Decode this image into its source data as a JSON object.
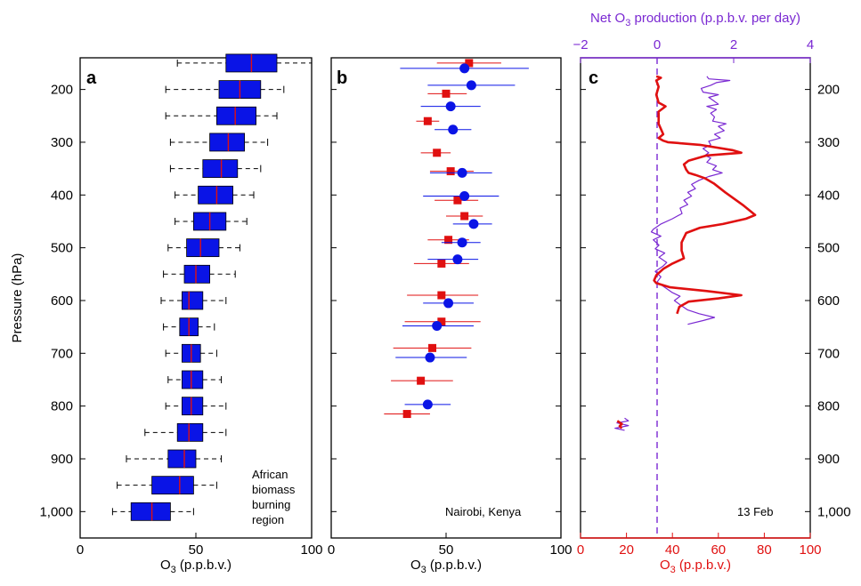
{
  "chart_data": [
    {
      "panel": "a",
      "type": "box",
      "xlabel": "O",
      "xlabel_sub": "3",
      "xlabel_tail": " (p.p.b.v.)",
      "ylabel": "Pressure (hPa)",
      "xlim": [
        0,
        100
      ],
      "ylim": [
        1050,
        140
      ],
      "xticks": [
        "0",
        "50",
        "100"
      ],
      "yticks": [
        "200",
        "300",
        "400",
        "500",
        "600",
        "700",
        "800",
        "900",
        "1,000"
      ],
      "annotation": [
        "African",
        "biomass",
        "burning",
        "region"
      ],
      "box_color": "#0a14e6",
      "median_color": "#e01010",
      "boxes": [
        {
          "p": 150,
          "wlo": 42,
          "q1": 63,
          "med": 74,
          "q3": 85,
          "whi": 100
        },
        {
          "p": 200,
          "wlo": 37,
          "q1": 60,
          "med": 69,
          "q3": 78,
          "whi": 88
        },
        {
          "p": 250,
          "wlo": 37,
          "q1": 59,
          "med": 67,
          "q3": 76,
          "whi": 85
        },
        {
          "p": 300,
          "wlo": 39,
          "q1": 56,
          "med": 64,
          "q3": 71,
          "whi": 81
        },
        {
          "p": 350,
          "wlo": 39,
          "q1": 53,
          "med": 61,
          "q3": 68,
          "whi": 78
        },
        {
          "p": 400,
          "wlo": 41,
          "q1": 51,
          "med": 59,
          "q3": 66,
          "whi": 75
        },
        {
          "p": 450,
          "wlo": 41,
          "q1": 49,
          "med": 56,
          "q3": 63,
          "whi": 72
        },
        {
          "p": 500,
          "wlo": 38,
          "q1": 46,
          "med": 52,
          "q3": 60,
          "whi": 69
        },
        {
          "p": 550,
          "wlo": 36,
          "q1": 45,
          "med": 50,
          "q3": 56,
          "whi": 67
        },
        {
          "p": 600,
          "wlo": 35,
          "q1": 44,
          "med": 47,
          "q3": 53,
          "whi": 63
        },
        {
          "p": 650,
          "wlo": 36,
          "q1": 43,
          "med": 47,
          "q3": 51,
          "whi": 58
        },
        {
          "p": 700,
          "wlo": 37,
          "q1": 44,
          "med": 48,
          "q3": 52,
          "whi": 59
        },
        {
          "p": 750,
          "wlo": 38,
          "q1": 44,
          "med": 48,
          "q3": 53,
          "whi": 61
        },
        {
          "p": 800,
          "wlo": 37,
          "q1": 44,
          "med": 48,
          "q3": 53,
          "whi": 63
        },
        {
          "p": 850,
          "wlo": 28,
          "q1": 42,
          "med": 47,
          "q3": 53,
          "whi": 63
        },
        {
          "p": 900,
          "wlo": 20,
          "q1": 38,
          "med": 45,
          "q3": 50,
          "whi": 61
        },
        {
          "p": 950,
          "wlo": 16,
          "q1": 31,
          "med": 43,
          "q3": 49,
          "whi": 59
        },
        {
          "p": 1000,
          "wlo": 14,
          "q1": 22,
          "med": 31,
          "q3": 39,
          "whi": 49
        }
      ]
    },
    {
      "panel": "b",
      "type": "scatter",
      "xlabel": "O",
      "xlabel_sub": "3",
      "xlabel_tail": " (p.p.b.v.)",
      "xlim": [
        0,
        100
      ],
      "ylim": [
        1050,
        140
      ],
      "xticks": [
        "0",
        "50",
        "100"
      ],
      "annotation": "Nairobi, Kenya",
      "series": [
        {
          "color": "#e01010",
          "marker": "square",
          "points": [
            {
              "x": 60,
              "p": 150,
              "lo": 46,
              "hi": 74
            },
            {
              "x": 50,
              "p": 208,
              "lo": 42,
              "hi": 59
            },
            {
              "x": 42,
              "p": 260,
              "lo": 37,
              "hi": 47
            },
            {
              "x": 46,
              "p": 320,
              "lo": 39,
              "hi": 52
            },
            {
              "x": 52,
              "p": 355,
              "lo": 43,
              "hi": 62
            },
            {
              "x": 55,
              "p": 410,
              "lo": 45,
              "hi": 64
            },
            {
              "x": 58,
              "p": 440,
              "lo": 50,
              "hi": 66
            },
            {
              "x": 51,
              "p": 485,
              "lo": 42,
              "hi": 60
            },
            {
              "x": 48,
              "p": 530,
              "lo": 36,
              "hi": 60
            },
            {
              "x": 48,
              "p": 590,
              "lo": 33,
              "hi": 64
            },
            {
              "x": 48,
              "p": 640,
              "lo": 32,
              "hi": 65
            },
            {
              "x": 44,
              "p": 690,
              "lo": 27,
              "hi": 61
            },
            {
              "x": 39,
              "p": 752,
              "lo": 26,
              "hi": 53
            },
            {
              "x": 33,
              "p": 815,
              "lo": 23,
              "hi": 43
            }
          ]
        },
        {
          "color": "#0a14e6",
          "marker": "circle",
          "points": [
            {
              "x": 58,
              "p": 160,
              "lo": 30,
              "hi": 86
            },
            {
              "x": 61,
              "p": 192,
              "lo": 42,
              "hi": 80
            },
            {
              "x": 52,
              "p": 232,
              "lo": 39,
              "hi": 65
            },
            {
              "x": 53,
              "p": 276,
              "lo": 45,
              "hi": 61
            },
            {
              "x": 57,
              "p": 358,
              "lo": 43,
              "hi": 70
            },
            {
              "x": 58,
              "p": 402,
              "lo": 40,
              "hi": 73
            },
            {
              "x": 62,
              "p": 455,
              "lo": 53,
              "hi": 70
            },
            {
              "x": 57,
              "p": 490,
              "lo": 48,
              "hi": 65
            },
            {
              "x": 55,
              "p": 522,
              "lo": 42,
              "hi": 64
            },
            {
              "x": 51,
              "p": 605,
              "lo": 40,
              "hi": 62
            },
            {
              "x": 46,
              "p": 648,
              "lo": 31,
              "hi": 62
            },
            {
              "x": 43,
              "p": 708,
              "lo": 28,
              "hi": 59
            },
            {
              "x": 42,
              "p": 797,
              "lo": 32,
              "hi": 52
            }
          ]
        }
      ]
    },
    {
      "panel": "c",
      "type": "line",
      "xlabel": "O",
      "xlabel_sub": "3",
      "xlabel_tail": " (p.p.b.v.)",
      "top_label": "Net O",
      "top_label_sub": "3",
      "top_label_tail": " production (p.p.b.v. per day)",
      "xlim": [
        0,
        100
      ],
      "top_xlim": [
        -2,
        4
      ],
      "ylim": [
        1050,
        140
      ],
      "xticks": [
        "0",
        "20",
        "40",
        "60",
        "80",
        "100"
      ],
      "top_xticks": [
        "−2",
        "0",
        "2",
        "4"
      ],
      "yticks": [
        "200",
        "300",
        "400",
        "500",
        "600",
        "700",
        "800",
        "900",
        "1,000"
      ],
      "annotation": "13 Feb",
      "o3_color": "#e01010",
      "prod_color": "#7a28d2",
      "zero_line_color": "#7a28d2",
      "series": [
        {
          "axis": "bottom",
          "color": "#e01010",
          "segments": [
            [
              {
                "x": 33,
                "p": 175
              },
              {
                "x": 35,
                "p": 178
              },
              {
                "x": 33,
                "p": 183
              },
              {
                "x": 34,
                "p": 195
              },
              {
                "x": 33,
                "p": 210
              },
              {
                "x": 34,
                "p": 225
              },
              {
                "x": 37,
                "p": 232
              },
              {
                "x": 34,
                "p": 242
              },
              {
                "x": 34,
                "p": 265
              },
              {
                "x": 36,
                "p": 285
              },
              {
                "x": 34,
                "p": 292
              },
              {
                "x": 36,
                "p": 297
              },
              {
                "x": 38,
                "p": 300
              },
              {
                "x": 52,
                "p": 305
              },
              {
                "x": 66,
                "p": 315
              },
              {
                "x": 70,
                "p": 320
              },
              {
                "x": 55,
                "p": 325
              },
              {
                "x": 47,
                "p": 335
              },
              {
                "x": 45,
                "p": 342
              },
              {
                "x": 46,
                "p": 352
              },
              {
                "x": 47,
                "p": 358
              },
              {
                "x": 50,
                "p": 362
              },
              {
                "x": 54,
                "p": 368
              },
              {
                "x": 58,
                "p": 378
              },
              {
                "x": 63,
                "p": 395
              },
              {
                "x": 71,
                "p": 420
              },
              {
                "x": 76,
                "p": 438
              },
              {
                "x": 72,
                "p": 445
              },
              {
                "x": 62,
                "p": 455
              },
              {
                "x": 52,
                "p": 462
              },
              {
                "x": 46,
                "p": 472
              },
              {
                "x": 44,
                "p": 490
              },
              {
                "x": 44,
                "p": 505
              },
              {
                "x": 45,
                "p": 520
              },
              {
                "x": 40,
                "p": 530
              },
              {
                "x": 36,
                "p": 540
              },
              {
                "x": 33,
                "p": 552
              },
              {
                "x": 32,
                "p": 562
              },
              {
                "x": 33,
                "p": 567
              },
              {
                "x": 39,
                "p": 575
              },
              {
                "x": 55,
                "p": 582
              },
              {
                "x": 70,
                "p": 590
              },
              {
                "x": 60,
                "p": 596
              },
              {
                "x": 47,
                "p": 602
              },
              {
                "x": 43,
                "p": 612
              },
              {
                "x": 42,
                "p": 625
              }
            ],
            [
              {
                "x": 16,
                "p": 828
              },
              {
                "x": 18,
                "p": 834
              },
              {
                "x": 17,
                "p": 838
              },
              {
                "x": 18,
                "p": 842
              }
            ]
          ]
        },
        {
          "axis": "top",
          "color": "#7a28d2",
          "segments": [
            [
              {
                "x": 1.3,
                "p": 175
              },
              {
                "x": 1.35,
                "p": 180
              },
              {
                "x": 1.9,
                "p": 183
              },
              {
                "x": 1.55,
                "p": 187
              },
              {
                "x": 1.4,
                "p": 192
              },
              {
                "x": 1.15,
                "p": 198
              },
              {
                "x": 1.2,
                "p": 205
              },
              {
                "x": 1.6,
                "p": 210
              },
              {
                "x": 1.35,
                "p": 215
              },
              {
                "x": 1.45,
                "p": 220
              },
              {
                "x": 1.6,
                "p": 228
              },
              {
                "x": 1.3,
                "p": 232
              },
              {
                "x": 1.55,
                "p": 238
              },
              {
                "x": 1.4,
                "p": 245
              },
              {
                "x": 1.5,
                "p": 252
              },
              {
                "x": 1.45,
                "p": 260
              },
              {
                "x": 1.8,
                "p": 265
              },
              {
                "x": 1.6,
                "p": 270
              },
              {
                "x": 1.75,
                "p": 278
              },
              {
                "x": 1.5,
                "p": 285
              },
              {
                "x": 1.65,
                "p": 292
              },
              {
                "x": 1.35,
                "p": 298
              },
              {
                "x": 1.4,
                "p": 305
              },
              {
                "x": 1.2,
                "p": 312
              },
              {
                "x": 1.35,
                "p": 320
              },
              {
                "x": 1.25,
                "p": 325
              },
              {
                "x": 1.4,
                "p": 330
              },
              {
                "x": 1.3,
                "p": 338
              },
              {
                "x": 1.55,
                "p": 345
              },
              {
                "x": 1.45,
                "p": 352
              },
              {
                "x": 1.7,
                "p": 358
              },
              {
                "x": 1.35,
                "p": 365
              },
              {
                "x": 1.1,
                "p": 372
              },
              {
                "x": 0.9,
                "p": 380
              },
              {
                "x": 1.0,
                "p": 388
              },
              {
                "x": 0.8,
                "p": 395
              },
              {
                "x": 0.9,
                "p": 402
              },
              {
                "x": 0.7,
                "p": 410
              },
              {
                "x": 0.8,
                "p": 418
              },
              {
                "x": 0.6,
                "p": 425
              },
              {
                "x": 0.65,
                "p": 435
              },
              {
                "x": 0.4,
                "p": 445
              },
              {
                "x": 0.1,
                "p": 455
              },
              {
                "x": -0.1,
                "p": 465
              },
              {
                "x": -0.15,
                "p": 470
              },
              {
                "x": 0.1,
                "p": 478
              },
              {
                "x": -0.1,
                "p": 485
              },
              {
                "x": 0.05,
                "p": 495
              },
              {
                "x": -0.05,
                "p": 502
              },
              {
                "x": 0.2,
                "p": 510
              },
              {
                "x": 0.05,
                "p": 518
              },
              {
                "x": 0.25,
                "p": 528
              },
              {
                "x": 0.15,
                "p": 535
              },
              {
                "x": -0.05,
                "p": 545
              },
              {
                "x": 0.1,
                "p": 555
              },
              {
                "x": 0.0,
                "p": 565
              },
              {
                "x": 0.2,
                "p": 575
              },
              {
                "x": 0.4,
                "p": 585
              },
              {
                "x": 0.6,
                "p": 592
              },
              {
                "x": 0.45,
                "p": 600
              },
              {
                "x": 0.6,
                "p": 608
              },
              {
                "x": 0.8,
                "p": 618
              },
              {
                "x": 1.1,
                "p": 625
              },
              {
                "x": 1.5,
                "p": 632
              },
              {
                "x": 1.2,
                "p": 638
              },
              {
                "x": 0.8,
                "p": 645
              }
            ],
            [
              {
                "x": -0.85,
                "p": 823
              },
              {
                "x": -0.75,
                "p": 828
              },
              {
                "x": -1.05,
                "p": 832
              },
              {
                "x": -0.75,
                "p": 837
              },
              {
                "x": -1.1,
                "p": 842
              },
              {
                "x": -0.85,
                "p": 846
              }
            ]
          ]
        }
      ]
    }
  ]
}
